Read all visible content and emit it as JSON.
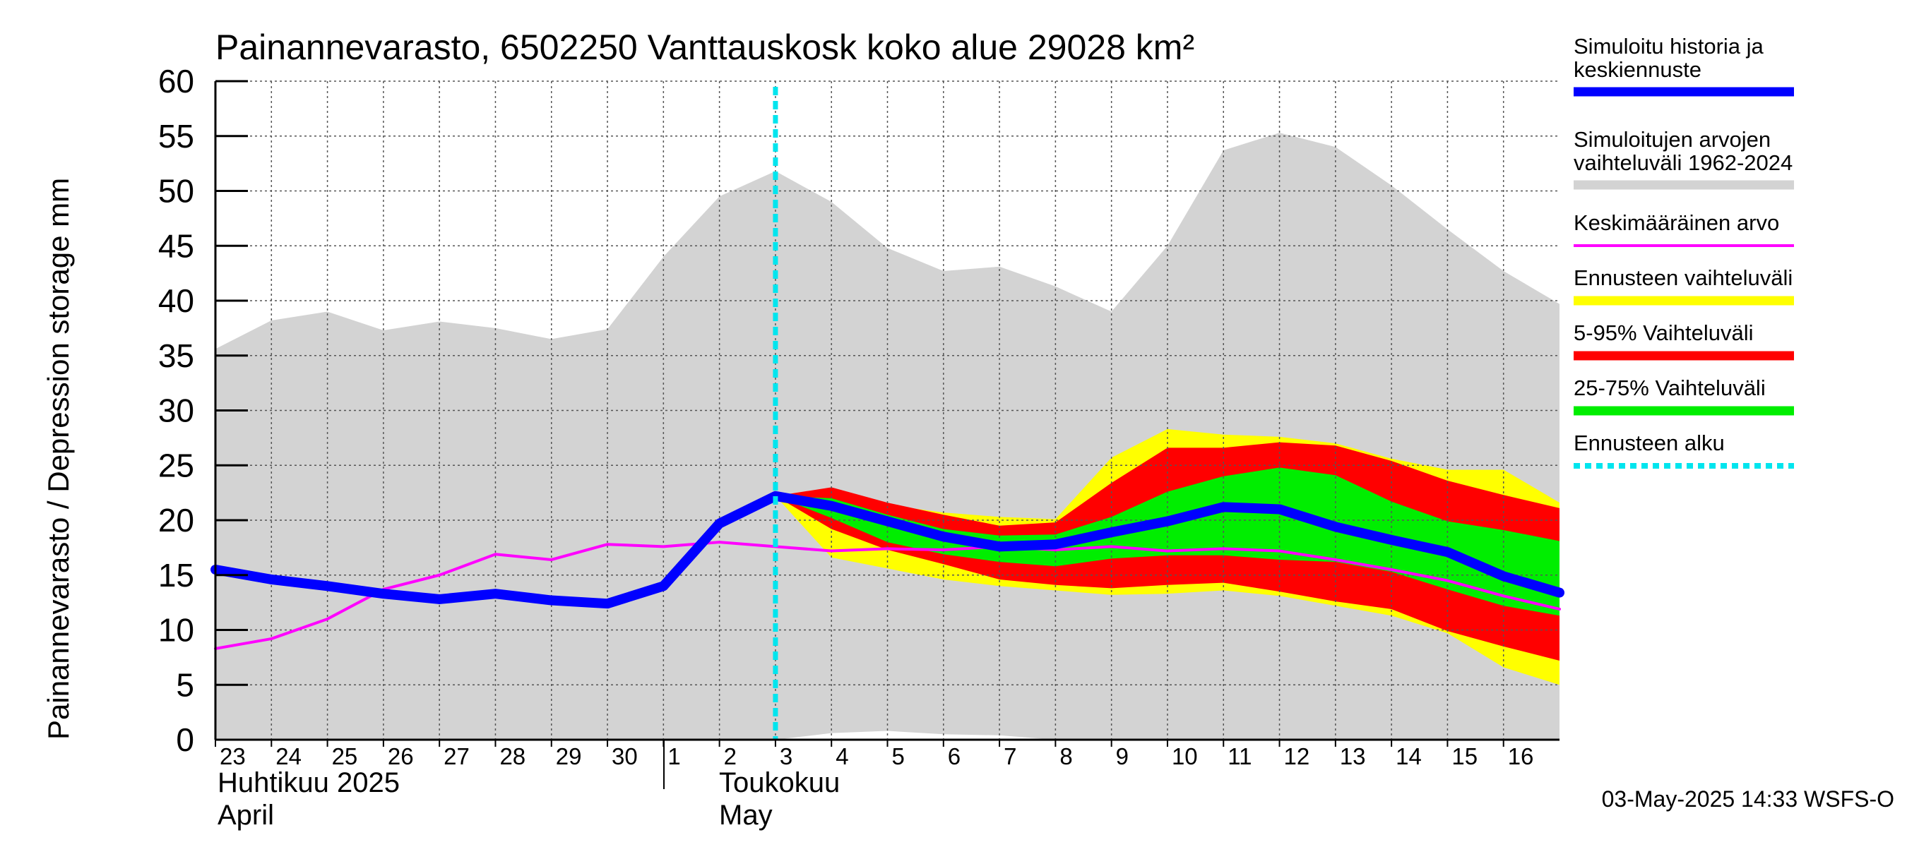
{
  "chart_data": {
    "type": "area",
    "title": "Painannevarasto, 6502250 Vanttauskosk koko alue 29028 km²",
    "ylabel": "Painannevarasto / Depression storage    mm",
    "ylim": [
      0,
      60
    ],
    "yticks": [
      0,
      5,
      10,
      15,
      20,
      25,
      30,
      35,
      40,
      45,
      50,
      55,
      60
    ],
    "grid": true,
    "legend_position": "right",
    "x_tick_labels": [
      "23",
      "24",
      "25",
      "26",
      "27",
      "28",
      "29",
      "30",
      "1",
      "2",
      "3",
      "4",
      "5",
      "6",
      "7",
      "8",
      "9",
      "10",
      "11",
      "12",
      "13",
      "14",
      "15",
      "16"
    ],
    "month_labels": {
      "april_fi": "Huhtikuu  2025",
      "april_en": "April",
      "may_fi": "Toukokuu",
      "may_en": "May"
    },
    "timestamp": "03-May-2025 14:33 WSFS-O",
    "forecast_start_day": 10,
    "history_range": {
      "x": [
        0,
        1,
        2,
        3,
        4,
        5,
        6,
        7,
        8,
        9,
        10,
        11,
        12,
        13,
        14,
        15,
        16,
        17,
        18,
        19,
        20,
        21,
        22,
        23,
        24
      ],
      "upper": [
        35.6,
        38.2,
        39,
        37.3,
        38.1,
        37.5,
        36.5,
        37.4,
        44,
        49.5,
        51.8,
        49,
        44.8,
        42.7,
        43.1,
        41.3,
        39,
        45,
        53.7,
        55.3,
        54,
        50.5,
        46.5,
        42.7,
        39.7
      ],
      "lower": [
        0,
        0,
        0,
        0,
        0,
        0,
        0,
        0,
        0,
        0,
        0,
        0.6,
        0.8,
        0.5,
        0.4,
        0,
        0,
        0,
        0,
        0,
        0,
        0,
        0,
        0,
        0
      ]
    },
    "forecast_x": [
      10,
      11,
      12,
      13,
      14,
      15,
      16,
      17,
      18,
      19,
      20,
      21,
      22,
      23,
      24
    ],
    "range_band": {
      "upper": [
        22.2,
        22.9,
        21.4,
        20.7,
        20.3,
        20.1,
        25.7,
        28.3,
        27.8,
        27.6,
        27,
        25.6,
        24.6,
        24.6,
        21.6
      ],
      "lower": [
        22.2,
        16.6,
        15.6,
        14.6,
        14.0,
        13.6,
        13.2,
        13.3,
        13.6,
        13.1,
        12.2,
        11.3,
        9.7,
        6.6,
        5.0
      ]
    },
    "p5_95_band": {
      "upper": [
        22.2,
        23.0,
        21.6,
        20.5,
        19.5,
        19.8,
        23.4,
        26.6,
        26.6,
        27.1,
        26.8,
        25.4,
        23.6,
        22.3,
        21.1
      ],
      "lower": [
        22.2,
        19.2,
        17.3,
        16.0,
        14.6,
        14.1,
        13.8,
        14.1,
        14.3,
        13.5,
        12.6,
        11.9,
        9.9,
        8.5,
        7.2
      ]
    },
    "p25_75_band": {
      "upper": [
        22.2,
        22.0,
        20.5,
        19.2,
        18.6,
        18.7,
        20.3,
        22.6,
        24.0,
        24.8,
        24.1,
        21.7,
        19.9,
        19.1,
        18.1
      ],
      "lower": [
        22.2,
        20.2,
        18.0,
        16.9,
        16.2,
        15.8,
        16.5,
        16.8,
        16.8,
        16.4,
        16.2,
        15.3,
        13.7,
        12.2,
        11.3
      ]
    },
    "series": [
      {
        "name": "Simuloitu historia ja keskiennuste",
        "color": "#0000ff",
        "x": [
          0,
          1,
          2,
          3,
          4,
          5,
          6,
          7,
          8,
          9,
          10,
          11,
          12,
          13,
          14,
          15,
          16,
          17,
          18,
          19,
          20,
          21,
          22,
          23,
          24
        ],
        "values": [
          15.5,
          14.6,
          14.0,
          13.3,
          12.8,
          13.3,
          12.7,
          12.4,
          14.0,
          19.7,
          22.2,
          21.3,
          19.9,
          18.5,
          17.6,
          17.8,
          18.9,
          19.9,
          21.2,
          21.0,
          19.4,
          18.2,
          17.1,
          14.9,
          13.4
        ]
      },
      {
        "name": "Keskimääräinen arvo",
        "color": "#ff00ff",
        "x": [
          0,
          1,
          2,
          3,
          4,
          5,
          6,
          7,
          8,
          9,
          10,
          11,
          12,
          13,
          14,
          15,
          16,
          17,
          18,
          19,
          20,
          21,
          22,
          23,
          24
        ],
        "values": [
          8.3,
          9.2,
          11.0,
          13.7,
          15.0,
          16.9,
          16.4,
          17.8,
          17.6,
          18.0,
          17.6,
          17.2,
          17.4,
          17.3,
          17.6,
          17.3,
          17.6,
          17.2,
          17.4,
          17.2,
          16.4,
          15.5,
          14.5,
          13.1,
          11.9
        ]
      }
    ],
    "legend": [
      {
        "line1": "Simuloitu historia ja",
        "line2": "keskiennuste",
        "color": "#0000ff",
        "style": "thick"
      },
      {
        "line1": "Simuloitujen arvojen",
        "line2": "vaihteluväli 1962-2024",
        "color": "#d3d3d3",
        "style": "thick"
      },
      {
        "line1": "Keskimääräinen arvo",
        "line2": "",
        "color": "#ff00ff",
        "style": "thin"
      },
      {
        "line1": "Ennusteen vaihteluväli",
        "line2": "",
        "color": "#ffff00",
        "style": "thick"
      },
      {
        "line1": "5-95% Vaihteluväli",
        "line2": "",
        "color": "#ff0000",
        "style": "thick"
      },
      {
        "line1": "25-75% Vaihteluväli",
        "line2": "",
        "color": "#00ee00",
        "style": "thick"
      },
      {
        "line1": "Ennusteen alku",
        "line2": "",
        "color": "#00e5ee",
        "style": "dotted"
      }
    ],
    "colors": {
      "history_range": "#d3d3d3",
      "range_band": "#ffff00",
      "p5_95_band": "#ff0000",
      "p25_75_band": "#00ee00",
      "forecast_line": "#00e5ee",
      "grid": "#555555"
    }
  }
}
